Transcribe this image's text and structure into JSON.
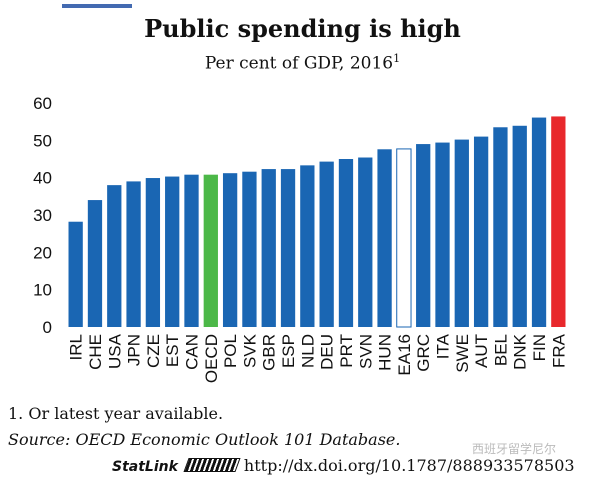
{
  "chart_data": {
    "type": "bar",
    "title": "Public spending is high",
    "subtitle": "Per cent of GDP, 2016",
    "subtitle_note": "1",
    "categories": [
      "IRL",
      "CHE",
      "USA",
      "JPN",
      "CZE",
      "EST",
      "CAN",
      "OECD",
      "POL",
      "SVK",
      "GBR",
      "ESP",
      "NLD",
      "DEU",
      "PRT",
      "SVN",
      "HUN",
      "EA16",
      "GRC",
      "ITA",
      "SWE",
      "AUT",
      "BEL",
      "DNK",
      "FIN",
      "FRA"
    ],
    "values": [
      28.2,
      34.0,
      38.0,
      39.0,
      39.9,
      40.3,
      40.8,
      40.8,
      41.2,
      41.6,
      42.3,
      42.3,
      43.3,
      44.3,
      45.0,
      45.4,
      47.6,
      47.7,
      49.0,
      49.4,
      50.2,
      51.0,
      53.5,
      53.9,
      56.1,
      56.4
    ],
    "ylim": [
      0,
      60
    ],
    "yticks": [
      0,
      10,
      20,
      30,
      40,
      50,
      60
    ],
    "grid": false,
    "legend": "none",
    "colors": {
      "default": "#1a66b3",
      "OECD": "#4cb848",
      "EA16": "#ffffff",
      "FRA": "#e8282c",
      "outline": "#1a66b3"
    }
  },
  "footnote": "1.  Or latest year available.",
  "source": "Source:  OECD Economic Outlook 101 Database.",
  "statlink": {
    "label": "StatLink",
    "url": "http://dx.doi.org/10.1787/888933578503"
  },
  "watermark": "西班牙留学尼尔"
}
